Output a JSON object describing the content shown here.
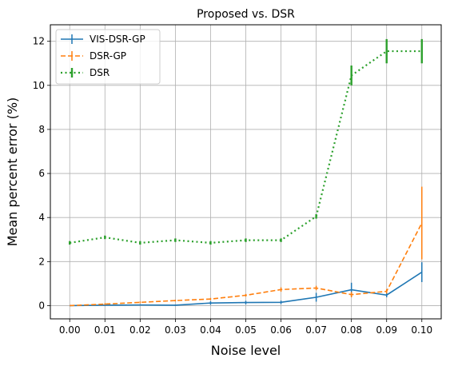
{
  "chart_data": {
    "type": "line",
    "title": "Proposed vs. DSR",
    "xlabel": "Noise level",
    "ylabel": "Mean percent error (%)",
    "x": [
      0.0,
      0.01,
      0.02,
      0.03,
      0.04,
      0.05,
      0.06,
      0.07,
      0.08,
      0.09,
      0.1
    ],
    "xtick_labels": [
      "0.00",
      "0.01",
      "0.02",
      "0.03",
      "0.04",
      "0.05",
      "0.06",
      "0.07",
      "0.08",
      "0.09",
      "0.10"
    ],
    "xlim": [
      -0.0055,
      0.1055
    ],
    "ylim": [
      -0.6,
      12.75
    ],
    "yticks": [
      0,
      2,
      4,
      6,
      8,
      10,
      12
    ],
    "grid": true,
    "legend_position": "upper-left",
    "series": [
      {
        "name": "VIS-DSR-GP",
        "color": "#1f77b4",
        "linestyle": "solid",
        "values": [
          0.0,
          0.02,
          0.03,
          0.02,
          0.12,
          0.14,
          0.15,
          0.38,
          0.72,
          0.48,
          1.52
        ],
        "errors": [
          0.0,
          0.03,
          0.03,
          0.03,
          0.08,
          0.08,
          0.08,
          0.2,
          0.32,
          0.1,
          0.45
        ]
      },
      {
        "name": "DSR-GP",
        "color": "#ff7f0e",
        "linestyle": "dashed",
        "values": [
          0.0,
          0.07,
          0.15,
          0.23,
          0.3,
          0.47,
          0.73,
          0.8,
          0.5,
          0.65,
          3.75
        ],
        "errors": [
          0.0,
          0.04,
          0.04,
          0.04,
          0.05,
          0.06,
          0.1,
          0.1,
          0.12,
          0.1,
          1.65
        ]
      },
      {
        "name": "DSR",
        "color": "#2ca02c",
        "linestyle": "dotted",
        "values": [
          2.85,
          3.1,
          2.85,
          2.97,
          2.85,
          2.97,
          2.97,
          4.05,
          10.45,
          11.55,
          11.55
        ],
        "errors": [
          0.08,
          0.08,
          0.08,
          0.08,
          0.08,
          0.08,
          0.08,
          0.1,
          0.45,
          0.55,
          0.55
        ]
      }
    ]
  }
}
